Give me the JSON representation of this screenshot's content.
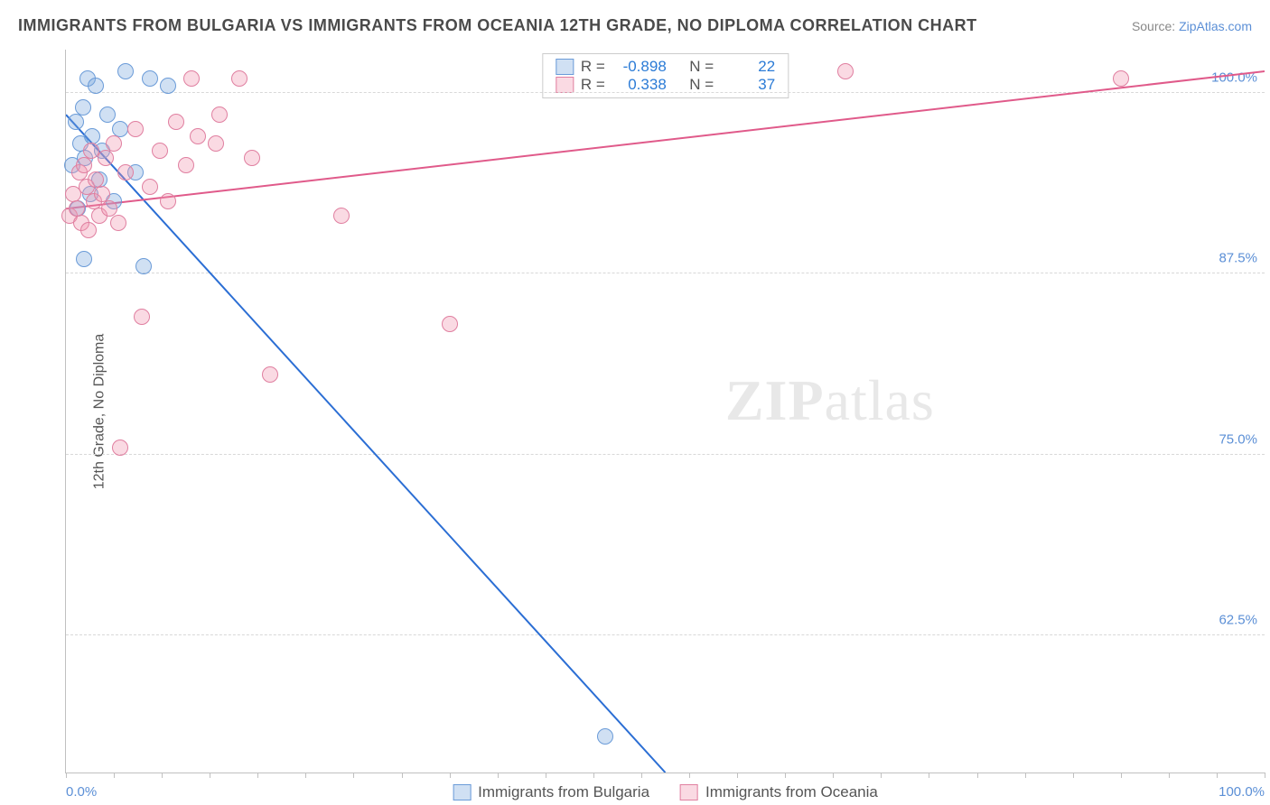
{
  "header": {
    "title": "IMMIGRANTS FROM BULGARIA VS IMMIGRANTS FROM OCEANIA 12TH GRADE, NO DIPLOMA CORRELATION CHART",
    "source_prefix": "Source: ",
    "source_link": "ZipAtlas.com"
  },
  "chart": {
    "type": "scatter",
    "ylabel": "12th Grade, No Diploma",
    "xlim": [
      0,
      100
    ],
    "ylim": [
      53,
      103
    ],
    "xtick_labels": {
      "left": "0.0%",
      "right": "100.0%"
    },
    "ytick_positions": [
      62.5,
      75.0,
      87.5,
      100.0
    ],
    "ytick_labels": [
      "62.5%",
      "75.0%",
      "87.5%",
      "100.0%"
    ],
    "xtick_positions": [
      0,
      4,
      8,
      12,
      16,
      20,
      24,
      28,
      32,
      36,
      40,
      44,
      48,
      52,
      56,
      60,
      64,
      68,
      72,
      76,
      80,
      84,
      88,
      92,
      96,
      100
    ],
    "background_color": "#ffffff",
    "grid_color": "#d8d8d8",
    "axis_color": "#c0c0c0",
    "marker_radius": 9,
    "series": [
      {
        "key": "bulgaria",
        "label": "Immigrants from Bulgaria",
        "fill": "rgba(120,165,220,0.35)",
        "stroke": "#6a9bd8",
        "line_color": "#2b6ed4",
        "line_width": 2,
        "r_label": "R =",
        "r_value": "-0.898",
        "n_label": "N =",
        "n_value": "22",
        "trend": {
          "x1": 0,
          "y1": 98.5,
          "x2": 50,
          "y2": 53
        },
        "points": [
          [
            0.5,
            95.0
          ],
          [
            0.8,
            98.0
          ],
          [
            1.0,
            92.0
          ],
          [
            1.2,
            96.5
          ],
          [
            1.4,
            99.0
          ],
          [
            1.6,
            95.5
          ],
          [
            1.8,
            101.0
          ],
          [
            2.0,
            93.0
          ],
          [
            2.2,
            97.0
          ],
          [
            2.5,
            100.5
          ],
          [
            2.8,
            94.0
          ],
          [
            3.0,
            96.0
          ],
          [
            3.5,
            98.5
          ],
          [
            4.0,
            92.5
          ],
          [
            4.5,
            97.5
          ],
          [
            5.0,
            101.5
          ],
          [
            5.8,
            94.5
          ],
          [
            6.5,
            88.0
          ],
          [
            7.0,
            101.0
          ],
          [
            8.5,
            100.5
          ],
          [
            1.5,
            88.5
          ],
          [
            45.0,
            55.5
          ]
        ]
      },
      {
        "key": "oceania",
        "label": "Immigrants from Oceania",
        "fill": "rgba(240,150,175,0.35)",
        "stroke": "#e07fa0",
        "line_color": "#e05a8a",
        "line_width": 2,
        "r_label": "R =",
        "r_value": "0.338",
        "n_label": "N =",
        "n_value": "37",
        "trend": {
          "x1": 0,
          "y1": 92.0,
          "x2": 100,
          "y2": 101.5
        },
        "points": [
          [
            0.3,
            91.5
          ],
          [
            0.6,
            93.0
          ],
          [
            0.9,
            92.0
          ],
          [
            1.1,
            94.5
          ],
          [
            1.3,
            91.0
          ],
          [
            1.5,
            95.0
          ],
          [
            1.7,
            93.5
          ],
          [
            1.9,
            90.5
          ],
          [
            2.1,
            96.0
          ],
          [
            2.3,
            92.5
          ],
          [
            2.5,
            94.0
          ],
          [
            2.8,
            91.5
          ],
          [
            3.0,
            93.0
          ],
          [
            3.3,
            95.5
          ],
          [
            3.6,
            92.0
          ],
          [
            4.0,
            96.5
          ],
          [
            4.4,
            91.0
          ],
          [
            5.0,
            94.5
          ],
          [
            5.8,
            97.5
          ],
          [
            6.3,
            84.5
          ],
          [
            7.0,
            93.5
          ],
          [
            7.8,
            96.0
          ],
          [
            8.5,
            92.5
          ],
          [
            9.2,
            98.0
          ],
          [
            10.0,
            95.0
          ],
          [
            11.0,
            97.0
          ],
          [
            12.5,
            96.5
          ],
          [
            12.8,
            98.5
          ],
          [
            14.5,
            101.0
          ],
          [
            15.5,
            95.5
          ],
          [
            17.0,
            80.5
          ],
          [
            4.5,
            75.5
          ],
          [
            23.0,
            91.5
          ],
          [
            32.0,
            84.0
          ],
          [
            65.0,
            101.5
          ],
          [
            88.0,
            101.0
          ],
          [
            10.5,
            101.0
          ]
        ]
      }
    ],
    "legend_top": {
      "swatch_border": [
        "#6a9bd8",
        "#e07fa0"
      ],
      "swatch_fill": [
        "rgba(120,165,220,0.35)",
        "rgba(240,150,175,0.35)"
      ]
    },
    "watermark": {
      "bold": "ZIP",
      "rest": "atlas"
    }
  }
}
